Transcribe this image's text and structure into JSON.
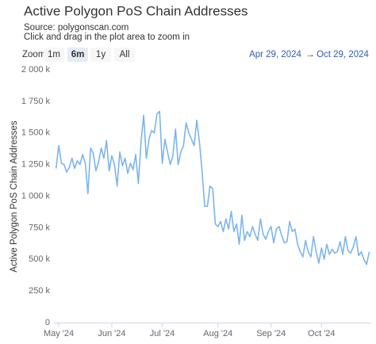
{
  "chart_data": {
    "type": "line",
    "title": "Active Polygon PoS Chain Addresses",
    "subtitle": [
      "Source: polygonscan.com",
      "Click and drag in the plot area to zoom in"
    ],
    "y_label": "Active Polygon PoS Chain Addresses",
    "zoom_label": "Zoom",
    "zoom_buttons": [
      "1m",
      "6m",
      "1y",
      "All"
    ],
    "zoom_selected": "6m",
    "range_from": "Apr 29, 2024",
    "range_arrow": "→",
    "range_to": "Oct 29, 2024",
    "grid": false,
    "ylim": [
      0,
      2000000
    ],
    "yticks": [
      0,
      {
        "value": 250000,
        "label": "250 k"
      },
      {
        "value": 500000,
        "label": "500 k"
      },
      {
        "value": 750000,
        "label": "750 k"
      },
      {
        "value": 1000000,
        "label": "1 000 k"
      },
      {
        "value": 1250000,
        "label": "1 250 k"
      },
      {
        "value": 1500000,
        "label": "1 500 k"
      },
      {
        "value": 1750000,
        "label": "1 750 k"
      },
      {
        "value": 2000000,
        "label": "2 000 k"
      }
    ],
    "categories": [
      null,
      "May '24",
      null,
      null,
      null,
      null,
      null,
      null,
      null,
      null,
      null,
      null,
      null,
      null,
      null,
      null,
      null,
      null,
      null,
      null,
      null,
      "Jun '24",
      null,
      null,
      null,
      null,
      null,
      null,
      null,
      null,
      null,
      null,
      null,
      null,
      null,
      null,
      null,
      null,
      null,
      null,
      "Jul '24",
      null,
      null,
      null,
      null,
      null,
      null,
      null,
      null,
      null,
      null,
      null,
      null,
      null,
      null,
      null,
      null,
      null,
      null,
      null,
      null,
      "Aug '24",
      null,
      null,
      null,
      null,
      null,
      null,
      null,
      null,
      null,
      null,
      null,
      null,
      null,
      null,
      null,
      null,
      null,
      null,
      null,
      "Sep '24",
      null,
      null,
      null,
      null,
      null,
      null,
      null,
      null,
      null,
      null,
      null,
      null,
      null,
      null,
      null,
      null,
      null,
      null,
      "Oct '24",
      null,
      null,
      null,
      null,
      null,
      null,
      null,
      null,
      null,
      null,
      null,
      null,
      null,
      null,
      null,
      null,
      null,
      null
    ],
    "series": [
      {
        "name": "Active Polygon PoS Chain Addresses",
        "color": "#7cb5ec",
        "values": [
          1220000,
          1400000,
          1260000,
          1250000,
          1190000,
          1230000,
          1300000,
          1220000,
          1280000,
          1250000,
          1330000,
          1260000,
          1020000,
          1380000,
          1340000,
          1200000,
          1270000,
          1380000,
          1300000,
          1440000,
          1200000,
          1320000,
          1250000,
          1080000,
          1350000,
          1240000,
          1300000,
          1180000,
          1260000,
          1210000,
          1330000,
          1100000,
          1430000,
          1640000,
          1300000,
          1450000,
          1520000,
          1500000,
          1650000,
          1670000,
          1260000,
          1450000,
          1350000,
          1250000,
          1320000,
          1530000,
          1250000,
          1350000,
          1400000,
          1580000,
          1500000,
          1450000,
          1400000,
          1600000,
          1430000,
          1200000,
          920000,
          920000,
          1080000,
          1060000,
          780000,
          760000,
          800000,
          720000,
          820000,
          740000,
          880000,
          720000,
          780000,
          620000,
          850000,
          650000,
          720000,
          680000,
          760000,
          700000,
          650000,
          820000,
          700000,
          660000,
          720000,
          760000,
          630000,
          740000,
          760000,
          690000,
          630000,
          640000,
          800000,
          720000,
          740000,
          620000,
          560000,
          520000,
          650000,
          560000,
          520000,
          680000,
          560000,
          470000,
          590000,
          500000,
          620000,
          540000,
          580000,
          550000,
          560000,
          640000,
          540000,
          680000,
          570000,
          550000,
          600000,
          680000,
          530000,
          560000,
          500000,
          460000,
          560000
        ]
      }
    ]
  }
}
